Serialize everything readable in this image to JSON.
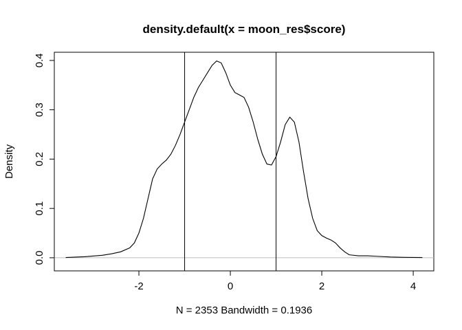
{
  "chart_data": {
    "type": "line",
    "title": "density.default(x = moon_res$score)",
    "xlabel": "N = 2353   Bandwidth = 0.1936",
    "ylabel": "Density",
    "xlim": [
      -3.6,
      4.2
    ],
    "ylim": [
      0,
      0.4
    ],
    "x_ticks": [
      -2,
      0,
      2,
      4
    ],
    "y_ticks": [
      0.0,
      0.1,
      0.2,
      0.3,
      0.4
    ],
    "x_tick_labels": [
      "-2",
      "0",
      "2",
      "4"
    ],
    "y_tick_labels": [
      "0.0",
      "0.1",
      "0.2",
      "0.3",
      "0.4"
    ],
    "grid": false,
    "reference_line_y": 0,
    "vertical_lines_x": [
      -1,
      1
    ],
    "series": [
      {
        "x": [
          -3.6,
          -3.2,
          -2.8,
          -2.6,
          -2.4,
          -2.2,
          -2.1,
          -2.0,
          -1.9,
          -1.8,
          -1.7,
          -1.6,
          -1.5,
          -1.4,
          -1.3,
          -1.2,
          -1.1,
          -1.0,
          -0.9,
          -0.8,
          -0.7,
          -0.6,
          -0.5,
          -0.4,
          -0.3,
          -0.2,
          -0.1,
          0.0,
          0.1,
          0.2,
          0.3,
          0.4,
          0.5,
          0.6,
          0.7,
          0.8,
          0.9,
          1.0,
          1.1,
          1.2,
          1.3,
          1.4,
          1.5,
          1.6,
          1.7,
          1.8,
          1.9,
          2.0,
          2.1,
          2.2,
          2.3,
          2.4,
          2.5,
          2.6,
          2.8,
          3.0,
          3.2,
          3.5,
          3.8,
          4.2
        ],
        "y": [
          0.0005,
          0.002,
          0.005,
          0.008,
          0.012,
          0.02,
          0.03,
          0.05,
          0.08,
          0.12,
          0.16,
          0.18,
          0.19,
          0.198,
          0.21,
          0.228,
          0.25,
          0.275,
          0.3,
          0.325,
          0.345,
          0.36,
          0.375,
          0.39,
          0.399,
          0.395,
          0.375,
          0.35,
          0.335,
          0.33,
          0.325,
          0.305,
          0.275,
          0.24,
          0.21,
          0.19,
          0.188,
          0.205,
          0.235,
          0.27,
          0.285,
          0.275,
          0.235,
          0.175,
          0.12,
          0.08,
          0.055,
          0.045,
          0.04,
          0.036,
          0.03,
          0.02,
          0.012,
          0.006,
          0.004,
          0.004,
          0.003,
          0.0015,
          0.0008,
          0.0005
        ]
      }
    ]
  }
}
